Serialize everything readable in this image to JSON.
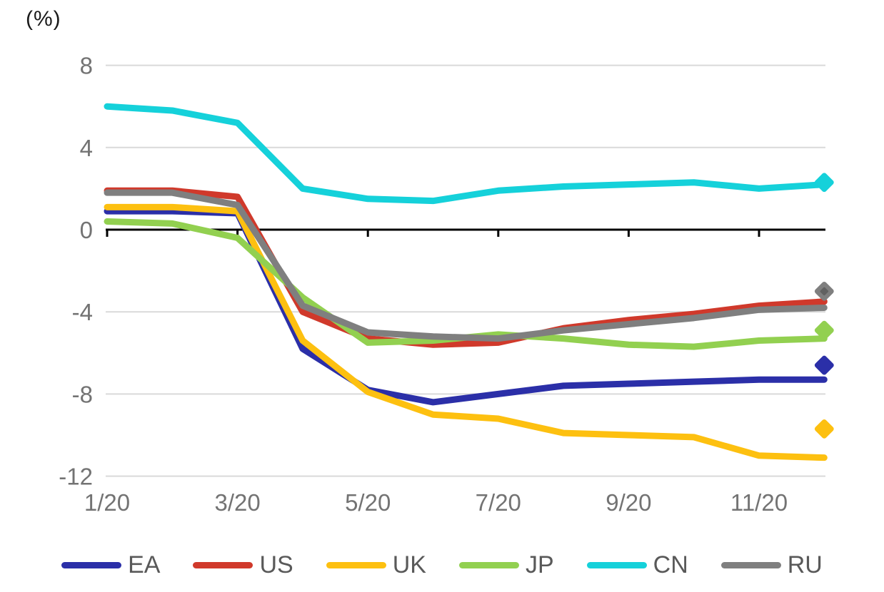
{
  "chart_data": {
    "type": "line",
    "unit": "(%)",
    "title": "",
    "xlabel": "",
    "ylabel": "(%)",
    "grid": true,
    "legend_position": "bottom",
    "ylim": [
      -12,
      8
    ],
    "y_ticks": [
      8,
      4,
      0,
      -4,
      -8,
      -12
    ],
    "x_categories": [
      "1/20",
      "2/20",
      "3/20",
      "4/20",
      "5/20",
      "6/20",
      "7/20",
      "8/20",
      "9/20",
      "10/20",
      "11/20",
      "12/20"
    ],
    "x_axis_labels": [
      "1/20",
      "3/20",
      "5/20",
      "7/20",
      "9/20",
      "11/20"
    ],
    "series": [
      {
        "name": "EA",
        "color": "#2b2fa8",
        "values": [
          0.9,
          0.9,
          0.8,
          -5.8,
          -7.8,
          -8.4,
          -8.0,
          -7.6,
          -7.5,
          -7.4,
          -7.3,
          -7.3
        ],
        "diamond": -6.6,
        "diamond_inner": null
      },
      {
        "name": "US",
        "color": "#d0392b",
        "values": [
          1.9,
          1.9,
          1.6,
          -4.0,
          -5.3,
          -5.6,
          -5.5,
          -4.8,
          -4.4,
          -4.1,
          -3.7,
          -3.5
        ],
        "diamond": null,
        "diamond_inner": null
      },
      {
        "name": "UK",
        "color": "#fdc010",
        "values": [
          1.1,
          1.1,
          0.9,
          -5.4,
          -7.9,
          -9.0,
          -9.2,
          -9.9,
          -10.0,
          -10.1,
          -11.0,
          -11.1
        ],
        "diamond": -9.7,
        "diamond_inner": null
      },
      {
        "name": "JP",
        "color": "#92d050",
        "values": [
          0.4,
          0.3,
          -0.4,
          -3.3,
          -5.5,
          -5.4,
          -5.1,
          -5.3,
          -5.6,
          -5.7,
          -5.4,
          -5.3
        ],
        "diamond": -4.9,
        "diamond_inner": null
      },
      {
        "name": "CN",
        "color": "#15d1da",
        "values": [
          6.0,
          5.8,
          5.2,
          2.0,
          1.5,
          1.4,
          1.9,
          2.1,
          2.2,
          2.3,
          2.0,
          2.2
        ],
        "diamond": 2.3,
        "diamond_inner": null
      },
      {
        "name": "RU",
        "color": "#7f7f7f",
        "values": [
          1.8,
          1.8,
          1.2,
          -3.7,
          -5.0,
          -5.2,
          -5.3,
          -4.9,
          -4.6,
          -4.3,
          -3.9,
          -3.8
        ],
        "diamond": -3.0,
        "diamond_inner": "#616161"
      }
    ],
    "style": {
      "grid_color": "#d9d9d9",
      "zero_axis_color": "#000000",
      "tick_label_color": "#737373",
      "legend_text_color": "#595959",
      "background": "#ffffff"
    }
  }
}
